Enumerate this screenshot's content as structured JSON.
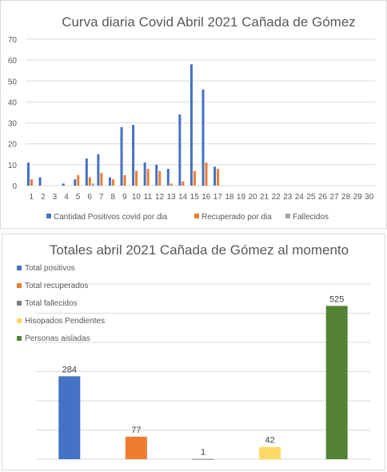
{
  "chart_data": [
    {
      "type": "bar",
      "title": "Curva diaria Covid Abril 2021 Cañada de Gómez",
      "categories": [
        "1",
        "2",
        "3",
        "4",
        "5",
        "6",
        "7",
        "8",
        "9",
        "10",
        "11",
        "12",
        "13",
        "14",
        "15",
        "16",
        "17",
        "18",
        "19",
        "20",
        "21",
        "22",
        "23",
        "24",
        "25",
        "26",
        "27",
        "28",
        "29",
        "30"
      ],
      "ylim": [
        0,
        70
      ],
      "yticks": [
        "0",
        "10",
        "20",
        "30",
        "40",
        "50",
        "60",
        "70"
      ],
      "grid": true,
      "legend_position": "bottom",
      "series": [
        {
          "name": "Cantidad Positivos covid por dia",
          "color": "#4472c4",
          "values": [
            11,
            4,
            0,
            1,
            3,
            13,
            15,
            4,
            28,
            29,
            11,
            10,
            8,
            34,
            58,
            46,
            9,
            null,
            null,
            null,
            null,
            null,
            null,
            null,
            null,
            null,
            null,
            null,
            null,
            null
          ]
        },
        {
          "name": "Recuperado por dia",
          "color": "#ed7d31",
          "values": [
            3,
            0,
            0,
            0,
            5,
            4,
            6,
            3,
            5,
            7,
            8,
            7,
            1,
            2,
            7,
            11,
            8,
            null,
            null,
            null,
            null,
            null,
            null,
            null,
            null,
            null,
            null,
            null,
            null,
            null
          ]
        },
        {
          "name": "Fallecidos",
          "color": "#a5a5a5",
          "values": [
            0,
            0,
            0,
            0,
            0,
            1,
            0,
            0,
            0,
            0,
            0,
            0,
            0,
            0,
            0,
            0,
            0,
            null,
            null,
            null,
            null,
            null,
            null,
            null,
            null,
            null,
            null,
            null,
            null,
            null
          ]
        }
      ]
    },
    {
      "type": "bar",
      "title": "Totales abril 2021 Cañada de Gómez al momento",
      "ylim": [
        0,
        600
      ],
      "grid": true,
      "legend_position": "top-left",
      "series": [
        {
          "name": "Total positivos",
          "color": "#4472c4",
          "value": 284
        },
        {
          "name": "Total recuperados",
          "color": "#ed7d31",
          "value": 77
        },
        {
          "name": "Total fallecidos",
          "color": "#7f7f7f",
          "value": 1
        },
        {
          "name": "Hisopados Pendientes",
          "color": "#ffd966",
          "value": 42
        },
        {
          "name": "Personas aisladas",
          "color": "#548235",
          "value": 525
        }
      ]
    }
  ]
}
